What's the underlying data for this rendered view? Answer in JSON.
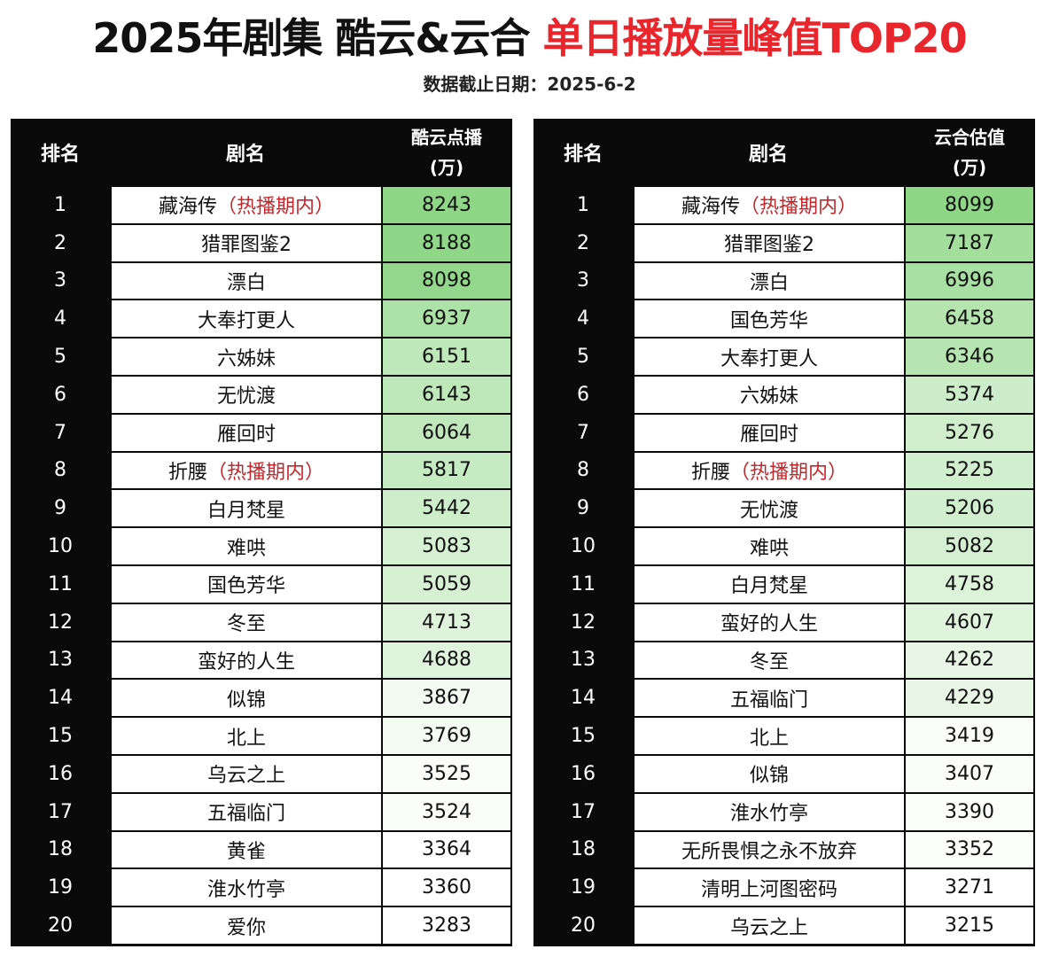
{
  "header": {
    "title_part1": "2025年剧集 酷云&云合",
    "title_part2": "单日播放量峰值TOP20",
    "subtitle": "数据截止日期：2025-6-2"
  },
  "chart_data": [
    {
      "type": "table",
      "columns": [
        "排名",
        "剧名",
        "酷云点播",
        "(万)"
      ],
      "rows": [
        {
          "rank": "1",
          "name": "藏海传",
          "tag": "（热播期内）",
          "value": 8243
        },
        {
          "rank": "2",
          "name": "猎罪图鉴2",
          "tag": "",
          "value": 8188
        },
        {
          "rank": "3",
          "name": "漂白",
          "tag": "",
          "value": 8098
        },
        {
          "rank": "4",
          "name": "大奉打更人",
          "tag": "",
          "value": 6937
        },
        {
          "rank": "5",
          "name": "六姊妹",
          "tag": "",
          "value": 6151
        },
        {
          "rank": "6",
          "name": "无忧渡",
          "tag": "",
          "value": 6143
        },
        {
          "rank": "7",
          "name": "雁回时",
          "tag": "",
          "value": 6064
        },
        {
          "rank": "8",
          "name": "折腰",
          "tag": "（热播期内）",
          "value": 5817
        },
        {
          "rank": "9",
          "name": "白月梵星",
          "tag": "",
          "value": 5442
        },
        {
          "rank": "10",
          "name": "难哄",
          "tag": "",
          "value": 5083
        },
        {
          "rank": "11",
          "name": "国色芳华",
          "tag": "",
          "value": 5059
        },
        {
          "rank": "12",
          "name": "冬至",
          "tag": "",
          "value": 4713
        },
        {
          "rank": "13",
          "name": "蛮好的人生",
          "tag": "",
          "value": 4688
        },
        {
          "rank": "14",
          "name": "似锦",
          "tag": "",
          "value": 3867
        },
        {
          "rank": "15",
          "name": "北上",
          "tag": "",
          "value": 3769
        },
        {
          "rank": "16",
          "name": "乌云之上",
          "tag": "",
          "value": 3525
        },
        {
          "rank": "17",
          "name": "五福临门",
          "tag": "",
          "value": 3524
        },
        {
          "rank": "18",
          "name": "黄雀",
          "tag": "",
          "value": 3364
        },
        {
          "rank": "19",
          "name": "淮水竹亭",
          "tag": "",
          "value": 3360
        },
        {
          "rank": "20",
          "name": "爱你",
          "tag": "",
          "value": 3283
        }
      ]
    },
    {
      "type": "table",
      "columns": [
        "排名",
        "剧名",
        "云合估值",
        "(万)"
      ],
      "rows": [
        {
          "rank": "1",
          "name": "藏海传",
          "tag": "（热播期内）",
          "value": 8099
        },
        {
          "rank": "2",
          "name": "猎罪图鉴2",
          "tag": "",
          "value": 7187
        },
        {
          "rank": "3",
          "name": "漂白",
          "tag": "",
          "value": 6996
        },
        {
          "rank": "4",
          "name": "国色芳华",
          "tag": "",
          "value": 6458
        },
        {
          "rank": "5",
          "name": "大奉打更人",
          "tag": "",
          "value": 6346
        },
        {
          "rank": "6",
          "name": "六姊妹",
          "tag": "",
          "value": 5374
        },
        {
          "rank": "7",
          "name": "雁回时",
          "tag": "",
          "value": 5276
        },
        {
          "rank": "8",
          "name": "折腰",
          "tag": "（热播期内）",
          "value": 5225
        },
        {
          "rank": "9",
          "name": "无忧渡",
          "tag": "",
          "value": 5206
        },
        {
          "rank": "10",
          "name": "难哄",
          "tag": "",
          "value": 5082
        },
        {
          "rank": "11",
          "name": "白月梵星",
          "tag": "",
          "value": 4758
        },
        {
          "rank": "12",
          "name": "蛮好的人生",
          "tag": "",
          "value": 4607
        },
        {
          "rank": "13",
          "name": "冬至",
          "tag": "",
          "value": 4262
        },
        {
          "rank": "14",
          "name": "五福临门",
          "tag": "",
          "value": 4229
        },
        {
          "rank": "15",
          "name": "北上",
          "tag": "",
          "value": 3419
        },
        {
          "rank": "16",
          "name": "似锦",
          "tag": "",
          "value": 3407
        },
        {
          "rank": "17",
          "name": "淮水竹亭",
          "tag": "",
          "value": 3390
        },
        {
          "rank": "18",
          "name": "无所畏惧之永不放弃",
          "tag": "",
          "value": 3352
        },
        {
          "rank": "19",
          "name": "清明上河图密码",
          "tag": "",
          "value": 3271
        },
        {
          "rank": "20",
          "name": "乌云之上",
          "tag": "",
          "value": 3215
        }
      ]
    }
  ],
  "colors": {
    "title_red": "#e8262c",
    "tag_red": "#c0282b",
    "table_dark": "#0a0a0a",
    "value_high": "#8fd687",
    "value_low": "#ffffff"
  }
}
